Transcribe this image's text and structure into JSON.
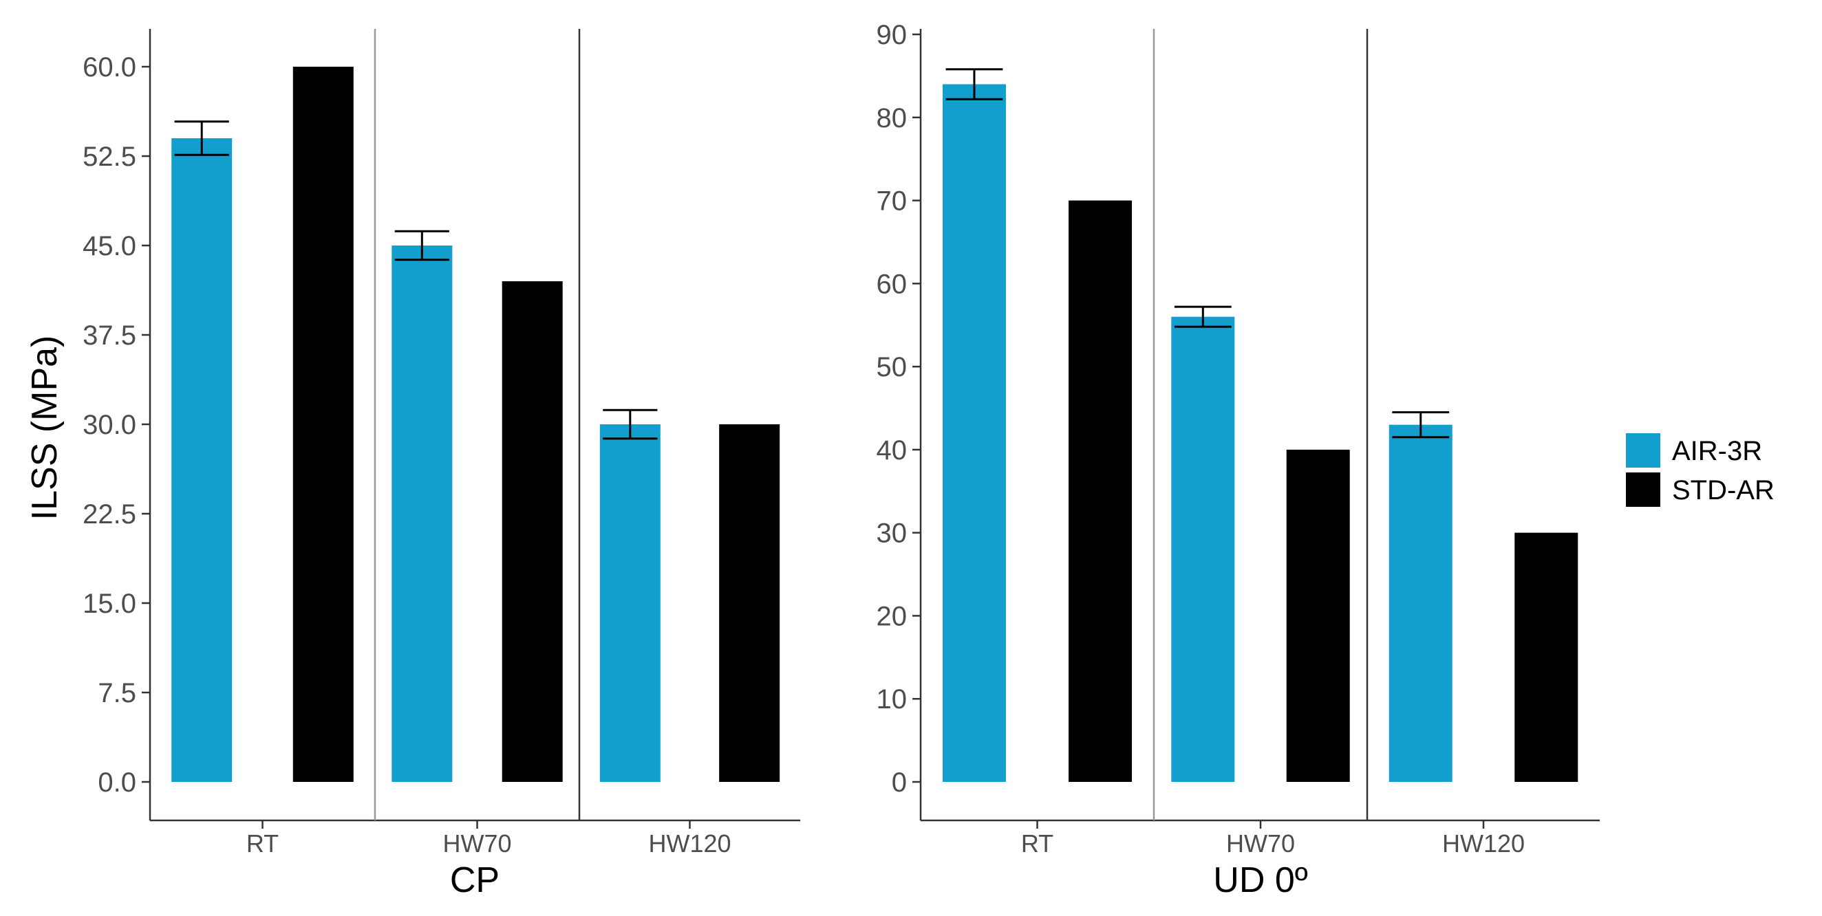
{
  "colors": {
    "series_air": "#139fce",
    "series_std": "#000000",
    "axis": "#333333",
    "separator_left": "#999999",
    "separator_right": "#333333"
  },
  "y_axis_title": "ILSS (MPa)",
  "legend": [
    {
      "name": "AIR-3R",
      "color": "#139fce"
    },
    {
      "name": "STD-AR",
      "color": "#000000"
    }
  ],
  "chart_data": [
    {
      "type": "bar",
      "title": "",
      "xlabel": "CP",
      "ylabel": "ILSS (MPa)",
      "categories": [
        "RT",
        "HW70",
        "HW120"
      ],
      "ylim": [
        0,
        60
      ],
      "yticks": [
        0,
        7.5,
        15,
        22.5,
        30,
        37.5,
        45,
        52.5,
        60
      ],
      "ytick_labels": [
        "0.0",
        "7.5",
        "15.0",
        "22.5",
        "30.0",
        "37.5",
        "45.0",
        "52.5",
        "60.0"
      ],
      "grid": false,
      "legend_position": "right",
      "series": [
        {
          "name": "AIR-3R",
          "values": [
            54,
            45,
            30
          ],
          "error": [
            1.4,
            1.2,
            1.2
          ]
        },
        {
          "name": "STD-AR",
          "values": [
            60,
            42,
            30
          ]
        }
      ]
    },
    {
      "type": "bar",
      "title": "",
      "xlabel": "UD 0º",
      "ylabel": "",
      "categories": [
        "RT",
        "HW70",
        "HW120"
      ],
      "ylim": [
        0,
        90
      ],
      "yticks": [
        0,
        10,
        20,
        30,
        40,
        50,
        60,
        70,
        80,
        90
      ],
      "ytick_labels": [
        "0",
        "10",
        "20",
        "30",
        "40",
        "50",
        "60",
        "70",
        "80",
        "90"
      ],
      "grid": false,
      "legend_position": "right",
      "series": [
        {
          "name": "AIR-3R",
          "values": [
            84,
            56,
            43
          ],
          "error": [
            1.8,
            1.2,
            1.5
          ]
        },
        {
          "name": "STD-AR",
          "values": [
            70,
            40,
            30
          ]
        }
      ]
    }
  ]
}
